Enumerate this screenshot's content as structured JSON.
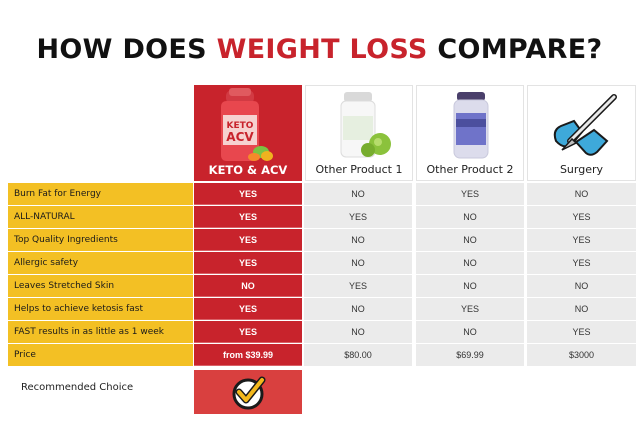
{
  "title": {
    "part1": "HOW DOES ",
    "highlight": "WEIGHT LOSS",
    "part2": " COMPARE?"
  },
  "columns": [
    {
      "label": "KETO & ACV"
    },
    {
      "label": "Other Product 1"
    },
    {
      "label": "Other Product 2"
    },
    {
      "label": "Surgery"
    }
  ],
  "rows": [
    {
      "feature": "Burn Fat for Energy",
      "ours": "YES",
      "o1": "NO",
      "o2": "YES",
      "o3": "NO"
    },
    {
      "feature": "ALL-NATURAL",
      "ours": "YES",
      "o1": "YES",
      "o2": "NO",
      "o3": "YES"
    },
    {
      "feature": "Top Quality Ingredients",
      "ours": "YES",
      "o1": "NO",
      "o2": "NO",
      "o3": "YES"
    },
    {
      "feature": "Allergic safety",
      "ours": "YES",
      "o1": "NO",
      "o2": "NO",
      "o3": "YES"
    },
    {
      "feature": "Leaves Stretched Skin",
      "ours": "NO",
      "o1": "YES",
      "o2": "NO",
      "o3": "NO"
    },
    {
      "feature": "Helps to achieve ketosis fast",
      "ours": "YES",
      "o1": "NO",
      "o2": "YES",
      "o3": "NO"
    },
    {
      "feature": "FAST results in as little as 1 week",
      "ours": "YES",
      "o1": "NO",
      "o2": "NO",
      "o3": "YES"
    },
    {
      "feature": "Price",
      "ours": "from $39.99",
      "o1": "$80.00",
      "o2": "$69.99",
      "o3": "$3000"
    }
  ],
  "recommended": {
    "label": "Recommended Choice"
  },
  "product_label_text": {
    "brand": "KETO",
    "name": "ACV"
  },
  "colors": {
    "red": "#c8232c",
    "yellow": "#f3c024",
    "gray": "#ebebeb",
    "check_yellow": "#f3b81c"
  }
}
